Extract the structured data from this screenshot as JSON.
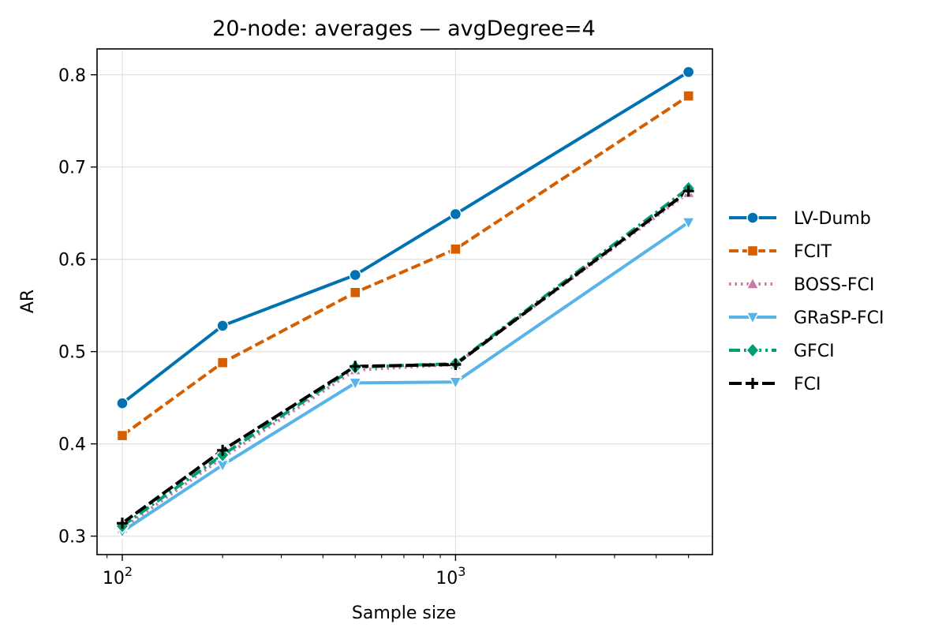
{
  "chart_data": {
    "type": "line",
    "title": "20-node: averages — avgDegree=4",
    "xlabel": "Sample size",
    "ylabel": "AR",
    "x_scale": "log",
    "x": [
      100,
      200,
      500,
      1000,
      5000
    ],
    "xlim": [
      84,
      5900
    ],
    "ylim": [
      0.28,
      0.828
    ],
    "y_ticks": [
      0.3,
      0.4,
      0.5,
      0.6,
      0.7,
      0.8
    ],
    "y_tick_labels": [
      "0.3",
      "0.4",
      "0.5",
      "0.6",
      "0.7",
      "0.8"
    ],
    "x_major_ticks": [
      100,
      1000
    ],
    "x_tick_base": "10",
    "x_tick_exponents": [
      "2",
      "3"
    ],
    "grid": true,
    "legend_position": "right-outside",
    "series": [
      {
        "name": "LV-Dumb",
        "values": [
          0.444,
          0.528,
          0.583,
          0.649,
          0.803
        ],
        "color": "#0072b2",
        "dash": "solid",
        "marker": "circle"
      },
      {
        "name": "FCIT",
        "values": [
          0.409,
          0.488,
          0.564,
          0.611,
          0.777
        ],
        "color": "#d55e00",
        "dash": "dashed",
        "marker": "square"
      },
      {
        "name": "BOSS-FCI",
        "values": [
          0.308,
          0.385,
          0.48,
          0.486,
          0.672
        ],
        "color": "#cc79a7",
        "dash": "dotted",
        "marker": "triangle-up"
      },
      {
        "name": "GRaSP-FCI",
        "values": [
          0.305,
          0.377,
          0.466,
          0.467,
          0.64
        ],
        "color": "#56b4e9",
        "dash": "solid",
        "marker": "triangle-down"
      },
      {
        "name": "GFCI",
        "values": [
          0.311,
          0.388,
          0.483,
          0.487,
          0.677
        ],
        "color": "#009e73",
        "dash": "dashdot",
        "marker": "diamond"
      },
      {
        "name": "FCI",
        "values": [
          0.314,
          0.393,
          0.484,
          0.486,
          0.674
        ],
        "color": "#000000",
        "dash": "longdash",
        "marker": "plus"
      }
    ]
  }
}
